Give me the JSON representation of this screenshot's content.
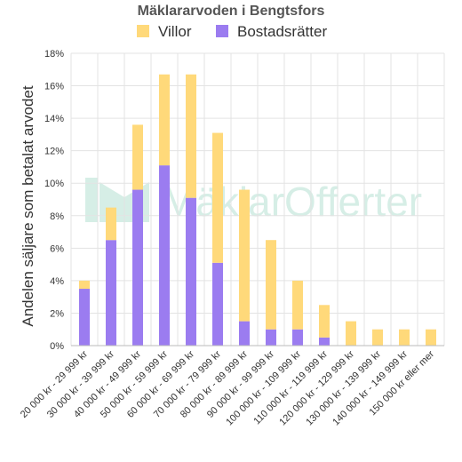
{
  "chart_data": {
    "type": "bar",
    "stacked": true,
    "title": "Mäklararvoden i Bengtsfors",
    "ylabel": "Andelen säljare som betalat arvodet",
    "xlabel": "",
    "ylim": [
      0,
      18
    ],
    "y_ticks": [
      "0%",
      "2%",
      "4%",
      "6%",
      "8%",
      "10%",
      "12%",
      "14%",
      "16%",
      "18%"
    ],
    "legend_position": "top-center",
    "grid": true,
    "categories": [
      "20 000 kr - 29 999 kr",
      "30 000 kr - 39 999 kr",
      "40 000 kr - 49 999 kr",
      "50 000 kr - 59 999 kr",
      "60 000 kr - 69 999 kr",
      "70 000 kr - 79 999 kr",
      "80 000 kr - 89 999 kr",
      "90 000 kr - 99 999 kr",
      "100 000 kr - 109 999 kr",
      "110 000 kr - 119 999 kr",
      "120 000 kr - 129 999 kr",
      "130 000 kr - 139 999 kr",
      "140 000 kr - 149 999 kr",
      "150 000 kr eller mer"
    ],
    "series": [
      {
        "name": "Bostadsrätter",
        "color": "#9b7cf0",
        "values": [
          3.5,
          6.5,
          9.6,
          11.1,
          9.1,
          5.1,
          1.5,
          1.0,
          1.0,
          0.5,
          0,
          0,
          0,
          0
        ]
      },
      {
        "name": "Villor",
        "color": "#ffd97a",
        "values": [
          0.5,
          2.0,
          4.0,
          5.6,
          7.6,
          8.0,
          8.1,
          5.5,
          3.0,
          2.0,
          1.5,
          1.0,
          1.0,
          1.0
        ]
      }
    ],
    "legend_order": [
      "Villor",
      "Bostadsrätter"
    ]
  },
  "watermark": {
    "text": "MäklarOfferter",
    "color": "#d6eee6"
  }
}
